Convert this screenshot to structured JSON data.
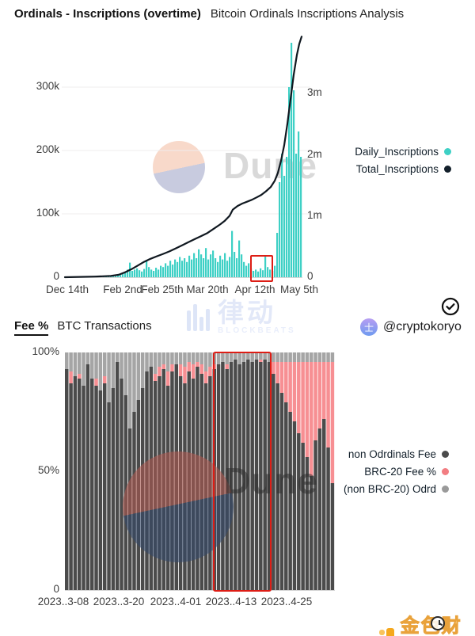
{
  "header": {
    "title": "Ordinals - Inscriptions (overtime)",
    "subtitle": "Bitcoin Ordinals Inscriptions Analysis"
  },
  "section2_header": {
    "title": "Fee %",
    "subtitle": "BTC Transactions"
  },
  "attribution": {
    "handle": "@cryptokoryo",
    "avatar_glyph": "士"
  },
  "watermarks": {
    "dune_label": "Dune",
    "blockbeats_cn": "律动",
    "blockbeats_en": "BLOCKBEATS"
  },
  "footer_logo": {
    "text": "金色财经"
  },
  "colors": {
    "teal_bar": "#3ed0c5",
    "total_line": "#101820",
    "dark_bar": "#4b4b4b",
    "pink_bar": "#f78f93",
    "gray_bar": "#a5a5a5",
    "annotation_red": "#dd1d15"
  },
  "chart_data": [
    {
      "type": "bar",
      "title": "Ordinals - Inscriptions (overtime)",
      "subtitle": "Bitcoin Ordinals Inscriptions Analysis",
      "x_ticks": [
        "Dec 14th",
        "Feb 2nd",
        "Feb 25th",
        "Mar 20th",
        "Apr 12th",
        "May 5th"
      ],
      "y_left_ticks": [
        "300k",
        "200k",
        "100k",
        "0"
      ],
      "y_right_ticks": [
        "3m",
        "2m",
        "1m",
        "0"
      ],
      "y_left_range_k": [
        0,
        381
      ],
      "y_right_range_m": [
        0,
        3.94
      ],
      "legend": [
        {
          "label": "Daily_Inscriptions",
          "color": "#3ed0c5"
        },
        {
          "label": "Total_Inscriptions",
          "color": "#13202b"
        }
      ],
      "annotation": "red box highlighting low daily inscriptions around Apr 12th",
      "series": [
        {
          "name": "Daily_Inscriptions",
          "type": "bar",
          "axis": "left",
          "unit": "thousand inscriptions/day",
          "values_k": [
            0.3,
            0.2,
            0.4,
            0.3,
            0.5,
            0.3,
            0.4,
            0.6,
            0.4,
            0.5,
            0.6,
            0.5,
            0.8,
            0.6,
            0.9,
            0.7,
            1.0,
            0.8,
            1.2,
            1.0,
            1.5,
            1.8,
            2.5,
            3.5,
            5,
            8,
            12,
            23,
            10,
            12,
            14,
            11,
            9,
            13,
            27,
            16,
            12,
            10,
            15,
            12,
            18,
            16,
            22,
            18,
            26,
            20,
            28,
            24,
            32,
            26,
            30,
            24,
            34,
            28,
            38,
            30,
            44,
            36,
            30,
            46,
            28,
            36,
            42,
            30,
            24,
            34,
            28,
            38,
            26,
            32,
            73,
            40,
            30,
            58,
            36,
            24,
            18,
            22,
            14,
            10,
            12,
            9,
            14,
            11,
            35,
            16,
            12,
            10,
            18,
            70,
            150,
            195,
            160,
            190,
            300,
            370,
            295,
            195,
            230,
            190
          ]
        },
        {
          "name": "Total_Inscriptions",
          "type": "line",
          "axis": "right",
          "unit": "million inscriptions cumulative",
          "points_x_m": [
            [
              82,
              0
            ],
            [
              120,
              0.01
            ],
            [
              140,
              0.02
            ],
            [
              150,
              0.04
            ],
            [
              158,
              0.08
            ],
            [
              166,
              0.13
            ],
            [
              174,
              0.19
            ],
            [
              182,
              0.25
            ],
            [
              190,
              0.3
            ],
            [
              198,
              0.34
            ],
            [
              206,
              0.38
            ],
            [
              214,
              0.42
            ],
            [
              222,
              0.47
            ],
            [
              230,
              0.52
            ],
            [
              238,
              0.57
            ],
            [
              246,
              0.62
            ],
            [
              254,
              0.67
            ],
            [
              262,
              0.72
            ],
            [
              270,
              0.79
            ],
            [
              278,
              0.86
            ],
            [
              284,
              0.92
            ],
            [
              290,
              1.0
            ],
            [
              294,
              1.1
            ],
            [
              300,
              1.16
            ],
            [
              306,
              1.2
            ],
            [
              312,
              1.23
            ],
            [
              318,
              1.26
            ],
            [
              324,
              1.3
            ],
            [
              330,
              1.34
            ],
            [
              336,
              1.4
            ],
            [
              342,
              1.47
            ],
            [
              347,
              1.57
            ],
            [
              351,
              1.7
            ],
            [
              355,
              1.9
            ],
            [
              359,
              2.15
            ],
            [
              363,
              2.5
            ],
            [
              367,
              2.9
            ],
            [
              371,
              3.3
            ],
            [
              375,
              3.62
            ],
            [
              378,
              3.8
            ],
            [
              381,
              3.92
            ]
          ]
        }
      ]
    },
    {
      "type": "bar",
      "stacked": "100-percent",
      "title": "Fee %",
      "subtitle": "BTC Transactions",
      "x_ticks": [
        "2023..3-08",
        "2023..3-20",
        "2023..4-01",
        "2023..4-13",
        "2023..4-25"
      ],
      "y_ticks": [
        "100%",
        "50%",
        "0"
      ],
      "y_range_pct": [
        0,
        100
      ],
      "legend": [
        {
          "label": "non Odrdinals Fee",
          "color": "#4b4b4b"
        },
        {
          "label": "BRC-20 Fee %",
          "color": "#f27d82"
        },
        {
          "label": "(non BRC-20) Odrd",
          "color": "#9a9a9a"
        }
      ],
      "annotation": "red box highlighting period around 2023-4-13",
      "series_order": [
        "non Odrdinals Fee",
        "BRC-20 Fee %",
        "(non BRC-20) Odrdinals"
      ],
      "bars_pct": [
        [
          93,
          0,
          7
        ],
        [
          87,
          5,
          8
        ],
        [
          90,
          0,
          10
        ],
        [
          89,
          2,
          9
        ],
        [
          86,
          0,
          14
        ],
        [
          95,
          0,
          5
        ],
        [
          89,
          0,
          11
        ],
        [
          86,
          3,
          11
        ],
        [
          84,
          0,
          16
        ],
        [
          87,
          3,
          10
        ],
        [
          79,
          0,
          21
        ],
        [
          85,
          0,
          15
        ],
        [
          96,
          0,
          4
        ],
        [
          89,
          0,
          11
        ],
        [
          82,
          0,
          18
        ],
        [
          68,
          0,
          32
        ],
        [
          75,
          0,
          25
        ],
        [
          80,
          0,
          20
        ],
        [
          85,
          0,
          15
        ],
        [
          92,
          0,
          8
        ],
        [
          94,
          0,
          6
        ],
        [
          88,
          3,
          9
        ],
        [
          90,
          4,
          6
        ],
        [
          93,
          2,
          5
        ],
        [
          86,
          6,
          8
        ],
        [
          92,
          3,
          5
        ],
        [
          95,
          0,
          5
        ],
        [
          90,
          5,
          5
        ],
        [
          87,
          7,
          6
        ],
        [
          92,
          4,
          4
        ],
        [
          89,
          6,
          5
        ],
        [
          94,
          2,
          4
        ],
        [
          91,
          4,
          5
        ],
        [
          87,
          5,
          8
        ],
        [
          90,
          4,
          6
        ],
        [
          93,
          2,
          5
        ],
        [
          95,
          0,
          5
        ],
        [
          96,
          0,
          4
        ],
        [
          93,
          2,
          5
        ],
        [
          96,
          0,
          4
        ],
        [
          97,
          0,
          3
        ],
        [
          95,
          0,
          5
        ],
        [
          96,
          0,
          4
        ],
        [
          97,
          0,
          3
        ],
        [
          96,
          0,
          4
        ],
        [
          97,
          0,
          3
        ],
        [
          96,
          1,
          3
        ],
        [
          97,
          0,
          3
        ],
        [
          96,
          0,
          4
        ],
        [
          91,
          5,
          4
        ],
        [
          87,
          9,
          4
        ],
        [
          83,
          13,
          4
        ],
        [
          79,
          17,
          4
        ],
        [
          75,
          21,
          4
        ],
        [
          71,
          25,
          4
        ],
        [
          66,
          30,
          4
        ],
        [
          62,
          34,
          4
        ],
        [
          56,
          40,
          4
        ],
        [
          48,
          48,
          4
        ],
        [
          63,
          33,
          4
        ],
        [
          68,
          28,
          4
        ],
        [
          72,
          24,
          4
        ],
        [
          60,
          36,
          4
        ],
        [
          45,
          51,
          4
        ]
      ]
    }
  ]
}
